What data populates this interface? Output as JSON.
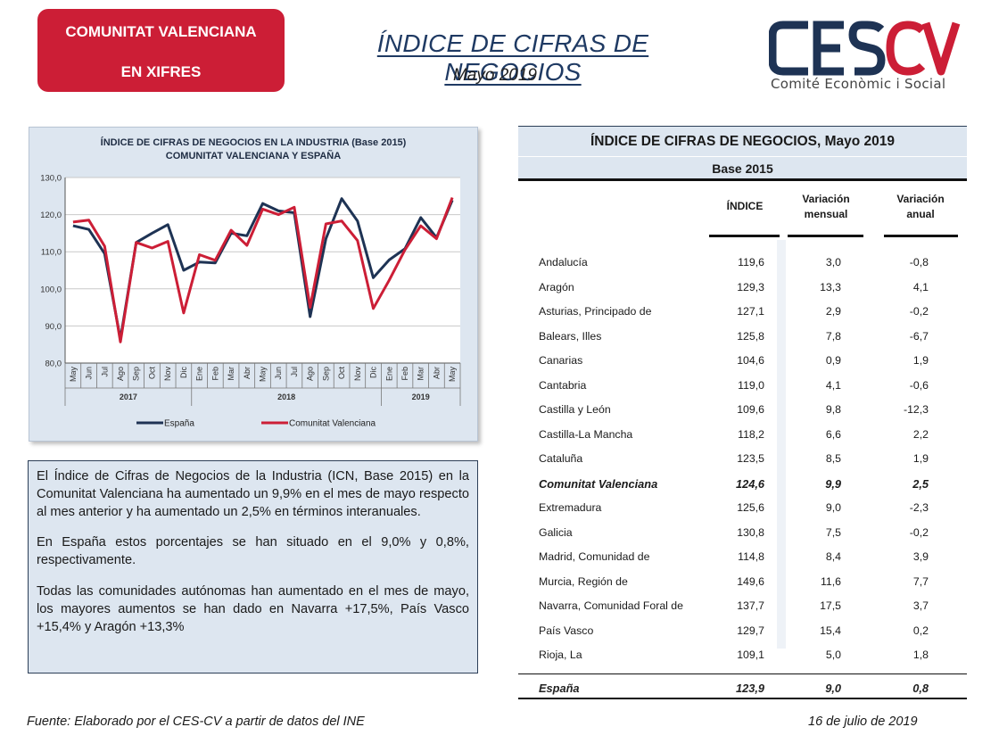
{
  "header": {
    "badge_line1": "COMUNITAT VALENCIANA",
    "badge_line2": "EN XIFRES",
    "title": "ÍNDICE DE CIFRAS DE NEGOCIOS",
    "subtitle": "Mayo 2019",
    "logo_text": "CESCV",
    "logo_subtitle": "Comité Econòmic i Social",
    "colors": {
      "badge": "#cc1e36",
      "title": "#1f3a63",
      "logo_dark": "#1e3354",
      "logo_red": "#cc1e36"
    }
  },
  "chart_data": {
    "type": "line",
    "title_line1": "ÍNDICE DE CIFRAS DE NEGOCIOS  EN LA INDUSTRIA (Base 2015)",
    "title_line2": "COMUNITAT  VALENCIANA  Y ESPAÑA",
    "categories": [
      "May",
      "Jun",
      "Jul",
      "Ago",
      "Sep",
      "Oct",
      "Nov",
      "Dic",
      "Ene",
      "Feb",
      "Mar",
      "Abr",
      "May",
      "Jun",
      "Jul",
      "Ago",
      "Sep",
      "Oct",
      "Nov",
      "Dic",
      "Ene",
      "Feb",
      "Mar",
      "Abr",
      "May"
    ],
    "year_groups": [
      {
        "label": "2017",
        "span": 8
      },
      {
        "label": "2018",
        "span": 12
      },
      {
        "label": "2019",
        "span": 5
      }
    ],
    "ylim": [
      80,
      130
    ],
    "yticks": [
      "80,0",
      "90,0",
      "100,0",
      "110,0",
      "120,0",
      "130,0"
    ],
    "legend_position": "bottom",
    "series": [
      {
        "name": "España",
        "color": "#1e3354",
        "values": [
          117.0,
          116.0,
          109.5,
          86.5,
          112.5,
          115.0,
          117.3,
          105.0,
          107.2,
          107.0,
          115.0,
          114.3,
          123.0,
          121.0,
          120.5,
          92.5,
          113.5,
          124.3,
          118.3,
          103.0,
          107.8,
          110.8,
          119.2,
          113.8,
          123.9
        ]
      },
      {
        "name": "Comunitat Valenciana",
        "color": "#cc1e36",
        "values": [
          118.0,
          118.5,
          111.5,
          85.7,
          112.5,
          111.0,
          112.8,
          93.5,
          109.2,
          107.7,
          115.8,
          111.7,
          121.5,
          120.0,
          122.0,
          95.0,
          117.5,
          118.3,
          113.0,
          94.7,
          102.3,
          110.5,
          117.0,
          113.5,
          124.6
        ]
      }
    ]
  },
  "text_box": {
    "p1": "El Índice de Cifras de Negocios de la Industria (ICN, Base 2015) en la Comunitat Valenciana ha aumentado un 9,9% en el mes de mayo respecto al mes anterior y ha aumentado un 2,5% en términos interanuales.",
    "p2": "En España estos porcentajes se han situado en el 9,0% y 0,8%, respectivamente.",
    "p3": "Todas las comunidades autónomas han aumentado en el mes de mayo, los mayores aumentos se han dado en Navarra +17,5%, País Vasco +15,4% y Aragón +13,3%"
  },
  "table": {
    "title": "ÍNDICE DE CIFRAS DE NEGOCIOS, Mayo 2019",
    "base": "Base 2015",
    "col_indice": "ÍNDICE",
    "col_mensual_1": "Variación",
    "col_mensual_2": "mensual",
    "col_anual_1": "Variación",
    "col_anual_2": "anual",
    "rows": [
      {
        "name": "Andalucía",
        "indice": "119,6",
        "mensual": "3,0",
        "anual": "-0,8"
      },
      {
        "name": "Aragón",
        "indice": "129,3",
        "mensual": "13,3",
        "anual": "4,1"
      },
      {
        "name": "Asturias, Principado de",
        "indice": "127,1",
        "mensual": "2,9",
        "anual": "-0,2"
      },
      {
        "name": "Balears, Illes",
        "indice": "125,8",
        "mensual": "7,8",
        "anual": "-6,7"
      },
      {
        "name": "Canarias",
        "indice": "104,6",
        "mensual": "0,9",
        "anual": "1,9"
      },
      {
        "name": "Cantabria",
        "indice": "119,0",
        "mensual": "4,1",
        "anual": "-0,6"
      },
      {
        "name": "Castilla y León",
        "indice": "109,6",
        "mensual": "9,8",
        "anual": "-12,3"
      },
      {
        "name": "Castilla-La Mancha",
        "indice": "118,2",
        "mensual": "6,6",
        "anual": "2,2"
      },
      {
        "name": "Cataluña",
        "indice": "123,5",
        "mensual": "8,5",
        "anual": "1,9"
      },
      {
        "name": "Comunitat Valenciana",
        "indice": "124,6",
        "mensual": "9,9",
        "anual": "2,5",
        "highlight": true
      },
      {
        "name": "Extremadura",
        "indice": "125,6",
        "mensual": "9,0",
        "anual": "-2,3"
      },
      {
        "name": "Galicia",
        "indice": "130,8",
        "mensual": "7,5",
        "anual": "-0,2"
      },
      {
        "name": "Madrid, Comunidad de",
        "indice": "114,8",
        "mensual": "8,4",
        "anual": "3,9"
      },
      {
        "name": "Murcia, Región de",
        "indice": "149,6",
        "mensual": "11,6",
        "anual": "7,7"
      },
      {
        "name": "Navarra, Comunidad Foral de",
        "indice": "137,7",
        "mensual": "17,5",
        "anual": "3,7"
      },
      {
        "name": "País Vasco",
        "indice": "129,7",
        "mensual": "15,4",
        "anual": "0,2"
      },
      {
        "name": "Rioja, La",
        "indice": "109,1",
        "mensual": "5,0",
        "anual": "1,8"
      }
    ],
    "total": {
      "name": "España",
      "indice": "123,9",
      "mensual": "9,0",
      "anual": "0,8"
    }
  },
  "footer": {
    "source": "Fuente: Elaborado por el CES-CV a partir de datos del INE",
    "date": "16 de julio de 2019"
  }
}
